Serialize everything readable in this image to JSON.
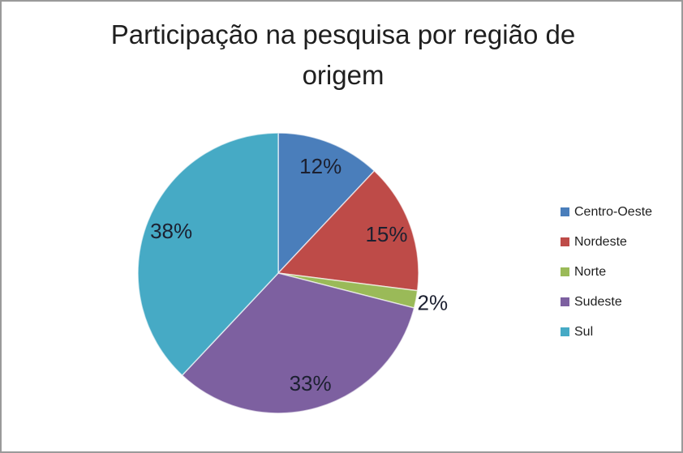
{
  "frame": {
    "background": "#ffffff",
    "border_color": "#9a9a9a"
  },
  "chart_data": {
    "type": "pie",
    "title": "Participação na pesquisa por região de origem",
    "categories": [
      "Centro-Oeste",
      "Nordeste",
      "Norte",
      "Sudeste",
      "Sul"
    ],
    "values": [
      12,
      15,
      2,
      33,
      38
    ],
    "labels": [
      "12%",
      "15%",
      "2%",
      "33%",
      "38%"
    ],
    "unit": "%",
    "colors": [
      "#4A7EBB",
      "#BE4B48",
      "#9ABA58",
      "#7D60A0",
      "#46AAC5"
    ],
    "start_angle_deg": 0,
    "direction": "clockwise",
    "legend_position": "right",
    "label_color": "#1c2030",
    "title_color": "#1f1f1f",
    "slice_border_color": "rgba(255,255,255,0.65)"
  }
}
